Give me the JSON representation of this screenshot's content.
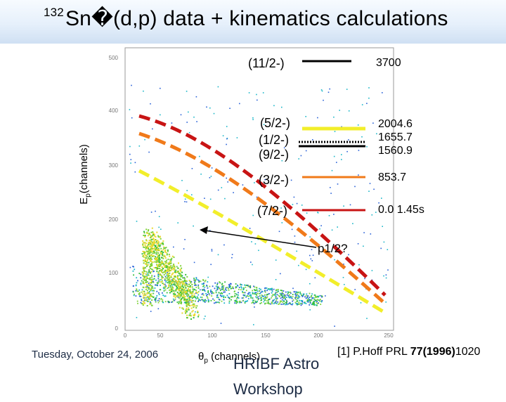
{
  "title": {
    "mass_number": "132",
    "text": "Sn�(d,p) data + kinematics calculations"
  },
  "levels": [
    {
      "jpi": "(11/2-)",
      "energy": "3700"
    },
    {
      "jpi": "(5/2-)",
      "energy": "2004.6"
    },
    {
      "jpi": "(1/2-)",
      "energy": "1655.7"
    },
    {
      "jpi": "(9/2-)",
      "energy": "1560.9"
    },
    {
      "jpi": "(3/2-)",
      "energy": "853.7"
    },
    {
      "jpi": "(7/2-)",
      "energy": "0.0  1.45s"
    }
  ],
  "annotation": "p1/2?",
  "axes": {
    "y_label_main": "E",
    "y_label_sub": "p",
    "y_label_rest": "(channels)",
    "x_label_main": "θ",
    "x_label_sub": "p",
    "x_label_rest": " (channels)",
    "y_ticks": [
      "500",
      "400",
      "300",
      "200",
      "100",
      "0"
    ],
    "x_ticks": [
      "0",
      "50",
      "100",
      "150",
      "200",
      "250"
    ]
  },
  "footer": {
    "date": "Tuesday, October 24, 2006",
    "conference": "HRIBF Astro",
    "conference_line2": "Workshop",
    "reference_prefix": "[1] P.Hoff PRL ",
    "reference_bold": "77(1996)",
    "reference_suffix": "1020"
  },
  "colors": {
    "red": "#c81414",
    "orange": "#f07a1a",
    "yellow": "#f2ee2a",
    "black": "#000000",
    "blue": "#1c2b44"
  }
}
